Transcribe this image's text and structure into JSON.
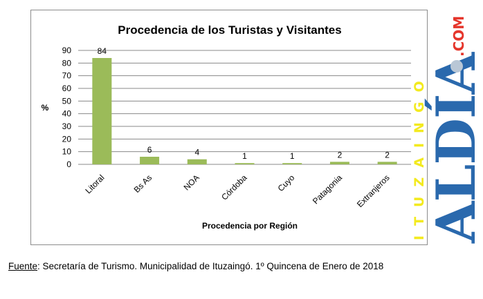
{
  "chart_data": {
    "type": "bar",
    "title": "Procedencia de los Turistas y Visitantes",
    "xlabel": "Procedencia por Región",
    "ylabel": "%",
    "categories": [
      "Litoral",
      "Bs As",
      "NOA",
      "Córdoba",
      "Cuyo",
      "Patagonia",
      "Extranjeros"
    ],
    "values": [
      84,
      6,
      4,
      1,
      1,
      2,
      2
    ],
    "data_labels": [
      "84",
      "6",
      "4",
      "1",
      "1",
      "2",
      "2"
    ],
    "ylim": [
      0,
      90
    ],
    "yticks": [
      "0",
      "10",
      "20",
      "30",
      "40",
      "50",
      "60",
      "70",
      "80",
      "90"
    ],
    "grid": true,
    "legend": "none",
    "bar_color": "#9bbb59",
    "grid_color": "#888888"
  },
  "watermark": {
    "brand": "ALDÍA",
    "subtitle": "ITUZAINGO",
    "domain": ".COM",
    "brand_color": "#2a69ad",
    "subtitle_color": "#f3ea1e",
    "domain_color": "#e5352b"
  },
  "source": {
    "label": "Fuente",
    "text": ": Secretaría de Turismo. Municipalidad de Ituzaingó. 1º Quincena de Enero de 2018"
  }
}
